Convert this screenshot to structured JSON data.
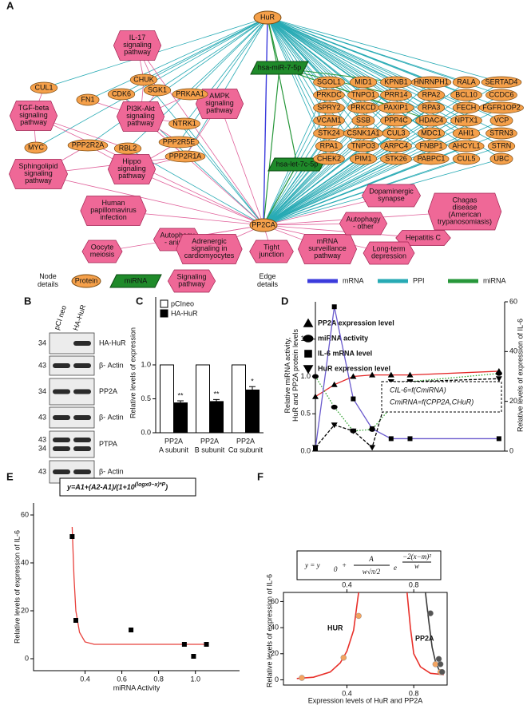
{
  "panel_labels": [
    "A",
    "B",
    "C",
    "D",
    "E",
    "F"
  ],
  "network": {
    "hubs": [
      "HuR",
      "PP2CA"
    ],
    "mirnas": [
      "hsa-miR-7-5p",
      "hsa-let-7c-5p"
    ],
    "pathways": [
      "IL-17\nsignaling\npathway",
      "TGF-beta\nsignaling\npathway",
      "PI3K-Akt\nsignaling\npathway",
      "AMPK\nsignaling\npathway",
      "Sphingolipid\nsignaling\npathway",
      "Hippo\nsignaling\npathway",
      "Human\npapillomavirus\ninfection",
      "Oocyte\nmeiosis",
      "Autophagy\n- animal",
      "Adrenergic\nsignaling in\ncardiomyocytes",
      "Tight\njunction",
      "mRNA\nsurveillance\npathway",
      "Dopaminergic\nsynapse",
      "Autophagy\n- other",
      "Chagas\ndisease\n(American\ntrypanosomiasis)",
      "Hepatitis C",
      "Long-term\ndepression"
    ],
    "proteins": [
      "CHUK",
      "CUL1",
      "FN1",
      "CDK6",
      "SGK1",
      "PRKAA1",
      "NTRK1",
      "MYC",
      "PPP2R2A",
      "RBL2",
      "PPP2R5E",
      "PPP2R1A",
      "SGOL1",
      "MID1",
      "KPNB1",
      "HNRNPH1",
      "RALA",
      "SERTAD4",
      "PRKDC",
      "TNPO1",
      "PRR14",
      "RPA2",
      "BCL10",
      "CCDC6",
      "SPRY2",
      "PRKCD",
      "PAXIP1",
      "RPA3",
      "FECH",
      "FGFR1OP2",
      "VCAM1",
      "SSB",
      "PPP4C",
      "HDAC4",
      "NPTX1",
      "VCP",
      "STK24",
      "CSNK1A1",
      "CUL3",
      "MDC1",
      "AHI1",
      "STRN3",
      "RPA1",
      "TNPO3",
      "ARPC4",
      "FNBP1",
      "AHCYL1",
      "STRN",
      "CHEK2",
      "PIM1",
      "STK26",
      "PABPC1",
      "CUL5",
      "UBC"
    ],
    "legend": {
      "node_title": "Node\ndetails",
      "node_items": [
        "Protein",
        "miRNA",
        "Signaling\npathway"
      ],
      "edge_title": "Edge\ndetails",
      "edge_items": [
        {
          "name": "mRNA",
          "color": "#3b3bdc"
        },
        {
          "name": "PPI",
          "color": "#27aab4"
        },
        {
          "name": "miRNA",
          "color": "#27973a"
        }
      ]
    }
  },
  "blot": {
    "columns": [
      "pCI neo",
      "HA-HuR"
    ],
    "rows": [
      {
        "label": "HA-HuR",
        "markers": [
          34
        ]
      },
      {
        "label": "β- Actin",
        "markers": [
          43
        ]
      },
      {
        "label": "PP2A",
        "markers": [
          34
        ]
      },
      {
        "label": "β- Actin",
        "markers": [
          43
        ]
      },
      {
        "label": "PTPA",
        "markers": [
          43,
          34
        ]
      },
      {
        "label": "β- Actin",
        "markers": [
          43
        ]
      }
    ]
  },
  "chart_data": [
    {
      "type": "bar",
      "ylabel": "Relative levels of expression",
      "categories": [
        "PP2A\nA subunit",
        "PP2A\nB subunit",
        "PP2A\nCα subunit"
      ],
      "series": [
        {
          "name": "pCIneo",
          "color": "#ffffff",
          "values": [
            1,
            1,
            1
          ]
        },
        {
          "name": "HA-HuR",
          "color": "#000000",
          "values": [
            0.44,
            0.46,
            0.63
          ],
          "errors": [
            0.03,
            0.03,
            0.05
          ],
          "annotations": [
            "**",
            "**",
            "*"
          ]
        }
      ],
      "ylim": [
        0,
        2
      ],
      "yticks": [
        {
          "value": 0,
          "label": "0.0"
        },
        {
          "value": 0.5,
          "label": "0.5"
        },
        {
          "value": 1,
          "label": "1.0"
        }
      ]
    },
    {
      "type": "line",
      "ylabel": "Relative miRNA activity,\nHuR and PP2A protein levels",
      "y2label": "Relative levels of expression of IL-6",
      "annotation": [
        "CIL-6=f(CmiRNA)",
        "CmiRNA=f(CPP2A,CHuR)"
      ],
      "x": [
        0,
        1,
        2,
        3,
        4,
        5,
        9.7
      ],
      "xlim": [
        0,
        10
      ],
      "series": [
        {
          "name": "PP2A expression level",
          "color": "#e32626",
          "marker": "triangle",
          "line_style": "solid",
          "values": [
            0.73,
            0.89,
            1.0,
            1.02,
            1.02,
            1.02,
            1.07
          ]
        },
        {
          "name": "miRNA activity",
          "color": "#2ca02c",
          "marker": "circle",
          "line_style": "dotted",
          "values": [
            1.0,
            0.59,
            0.27,
            0.29,
            0.59,
            0.93,
            1.04
          ]
        },
        {
          "name": "IL-6 mRNA level",
          "color": "#6a5acd",
          "marker": "square",
          "line_style": "solid",
          "axis": "y2",
          "values": [
            1,
            58,
            21,
            9,
            5,
            5,
            5
          ]
        },
        {
          "name": "HuR expression level",
          "color": "#000000",
          "marker": "triangle-down",
          "line_style": "dashed",
          "values": [
            0.05,
            0.35,
            0.27,
            0.05,
            0.93,
            0.93,
            0.97
          ]
        }
      ],
      "ylim": [
        0,
        2
      ],
      "yticks": [
        {
          "value": 0,
          "label": "0.0"
        },
        {
          "value": 0.5,
          "label": "0.5"
        },
        {
          "value": 1,
          "label": "1.0"
        },
        {
          "value": 1.5,
          "label": "1.5"
        }
      ],
      "y2lim": [
        0,
        60
      ],
      "y2ticks": [
        0,
        20,
        40,
        60
      ]
    },
    {
      "type": "scatter",
      "formula": [
        "y=A1+(A2-A1)/(1+10",
        "(logx0−x)*P",
        ")"
      ],
      "xlabel": "miRNA Activity",
      "ylabel": "Relative levels of expression of IL-6",
      "x": [
        0.33,
        0.35,
        0.65,
        0.94,
        0.99,
        1.06
      ],
      "values": [
        51,
        16,
        12,
        6,
        1,
        6
      ],
      "color": "#000000",
      "fit": {
        "color": "#e8413c",
        "x": [
          0.33,
          0.34,
          0.35,
          0.37,
          0.4,
          0.45,
          0.5,
          0.6,
          0.8,
          1.06
        ],
        "values": [
          55,
          34,
          20,
          11,
          7,
          6,
          6,
          6,
          6,
          6
        ]
      },
      "xlim": [
        0.12,
        1.24
      ],
      "xticks": [
        {
          "value": 0.4,
          "label": "0.4"
        },
        {
          "value": 0.6,
          "label": "0.6"
        },
        {
          "value": 0.8,
          "label": "0.8"
        },
        {
          "value": 1,
          "label": "1.0"
        }
      ],
      "ylim": [
        -5,
        65
      ],
      "yticks": [
        0,
        20,
        40,
        60
      ]
    },
    {
      "type": "scatter",
      "formula": {
        "lhs": "y = y",
        "sub": "0",
        "plus": "+",
        "num": "A",
        "den": "w√π/2",
        "base": "e",
        "exp_num": "−2(x−m)²",
        "exp_den": "w"
      },
      "xlabel": "Expression levels  of HuR and PP2A",
      "ylabel": "Relative levels of expression of IL-6",
      "series": [
        {
          "name": "HUR",
          "color": "#f4a460",
          "x": [
            0.13,
            0.38,
            0.47,
            0.93,
            0.96
          ],
          "values": [
            1.5,
            17,
            49,
            12,
            6
          ]
        },
        {
          "name": "PP2A",
          "color": "#555555",
          "x": [
            0.9,
            0.95,
            0.96,
            0.97
          ],
          "values": [
            51,
            16,
            12,
            6
          ]
        }
      ],
      "curves": [
        {
          "color": "#e8302a",
          "x": [
            0.1,
            0.2,
            0.3,
            0.36,
            0.4,
            0.44,
            0.47,
            0.6,
            0.76,
            0.78,
            0.8,
            0.84,
            0.9,
            0.98
          ],
          "values": [
            1,
            2,
            6,
            13,
            22,
            38,
            67,
            null,
            67,
            40,
            20,
            10,
            5,
            4
          ]
        },
        {
          "color": "#3a3a3a",
          "x": [
            0.87,
            0.89,
            0.91,
            0.93,
            0.95,
            0.98
          ],
          "values": [
            67,
            45,
            25,
            14,
            8,
            5
          ]
        }
      ],
      "xlim": [
        0.02,
        1.0
      ],
      "xticks": [
        {
          "value": 0.4,
          "label": "0.4"
        },
        {
          "value": 0.8,
          "label": "0.8"
        }
      ],
      "xticks_top": [
        {
          "value": 0.4,
          "label": "0.4"
        },
        {
          "value": 0.8,
          "label": "0.8"
        }
      ],
      "ylim": [
        -4,
        67
      ],
      "yticks": [
        0,
        20,
        40,
        60
      ]
    }
  ]
}
